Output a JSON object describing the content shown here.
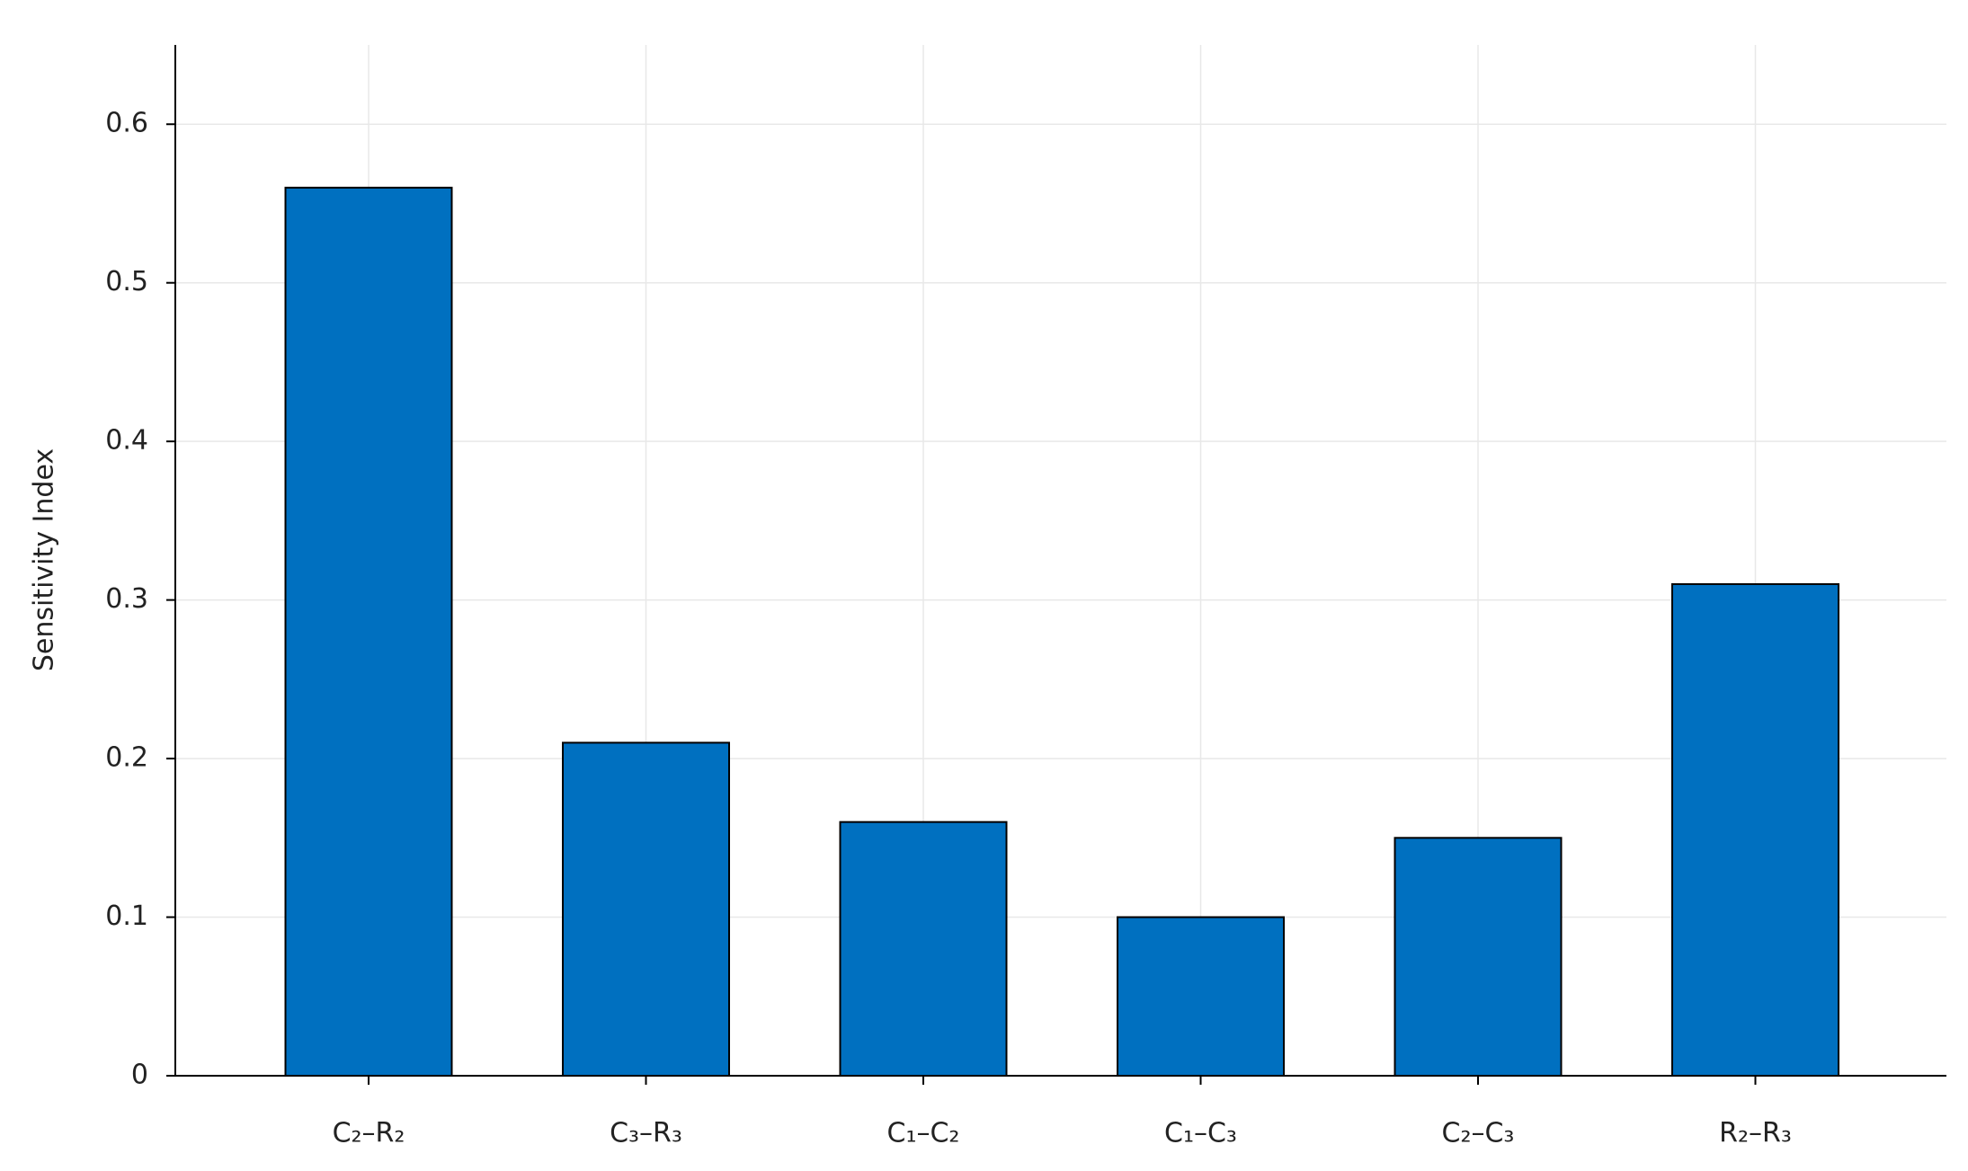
{
  "chart_data": {
    "type": "bar",
    "y_label": "Sensitivity Index",
    "categories": [
      "C₂–R₂",
      "C₃–R₃",
      "C₁–C₂",
      "C₁–C₃",
      "C₂–C₃",
      "R₂–R₃"
    ],
    "values": [
      0.56,
      0.21,
      0.16,
      0.1,
      0.15,
      0.31
    ],
    "color": "#0070c0",
    "ylim": [
      0,
      0.65
    ],
    "yticks": [
      0,
      0.1,
      0.2,
      0.3,
      0.4,
      0.5,
      0.6
    ],
    "grid": true
  }
}
